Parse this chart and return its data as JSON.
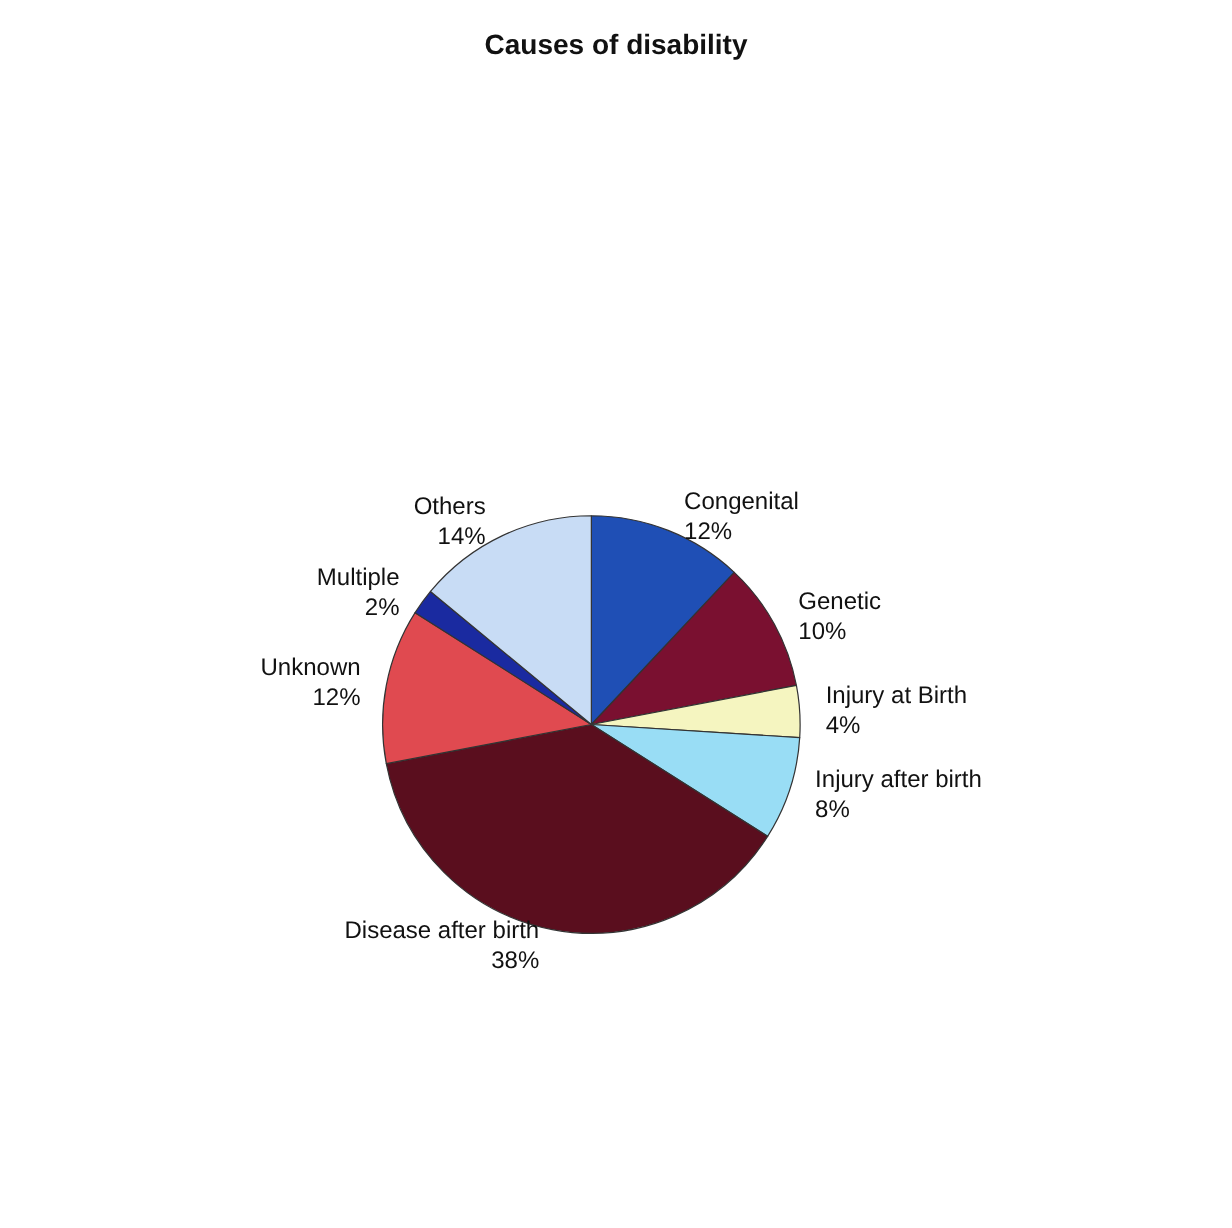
{
  "chart_data": {
    "type": "pie",
    "title": "Causes of disability",
    "categories": [
      "Congenital",
      "Genetic",
      "Injury at Birth",
      "Injury after birth",
      "Disease after birth",
      "Unknown",
      "Multiple",
      "Others"
    ],
    "values": [
      12,
      10,
      4,
      8,
      38,
      12,
      2,
      14
    ],
    "value_labels": [
      "12%",
      "10%",
      "4%",
      "8%",
      "38%",
      "12%",
      "2%",
      "14%"
    ],
    "colors": [
      "#1f4fb5",
      "#7a1030",
      "#f5f5c0",
      "#99ddf5",
      "#5a0e1e",
      "#e04a50",
      "#1a2aa0",
      "#c8dcf5"
    ],
    "legend": false
  }
}
